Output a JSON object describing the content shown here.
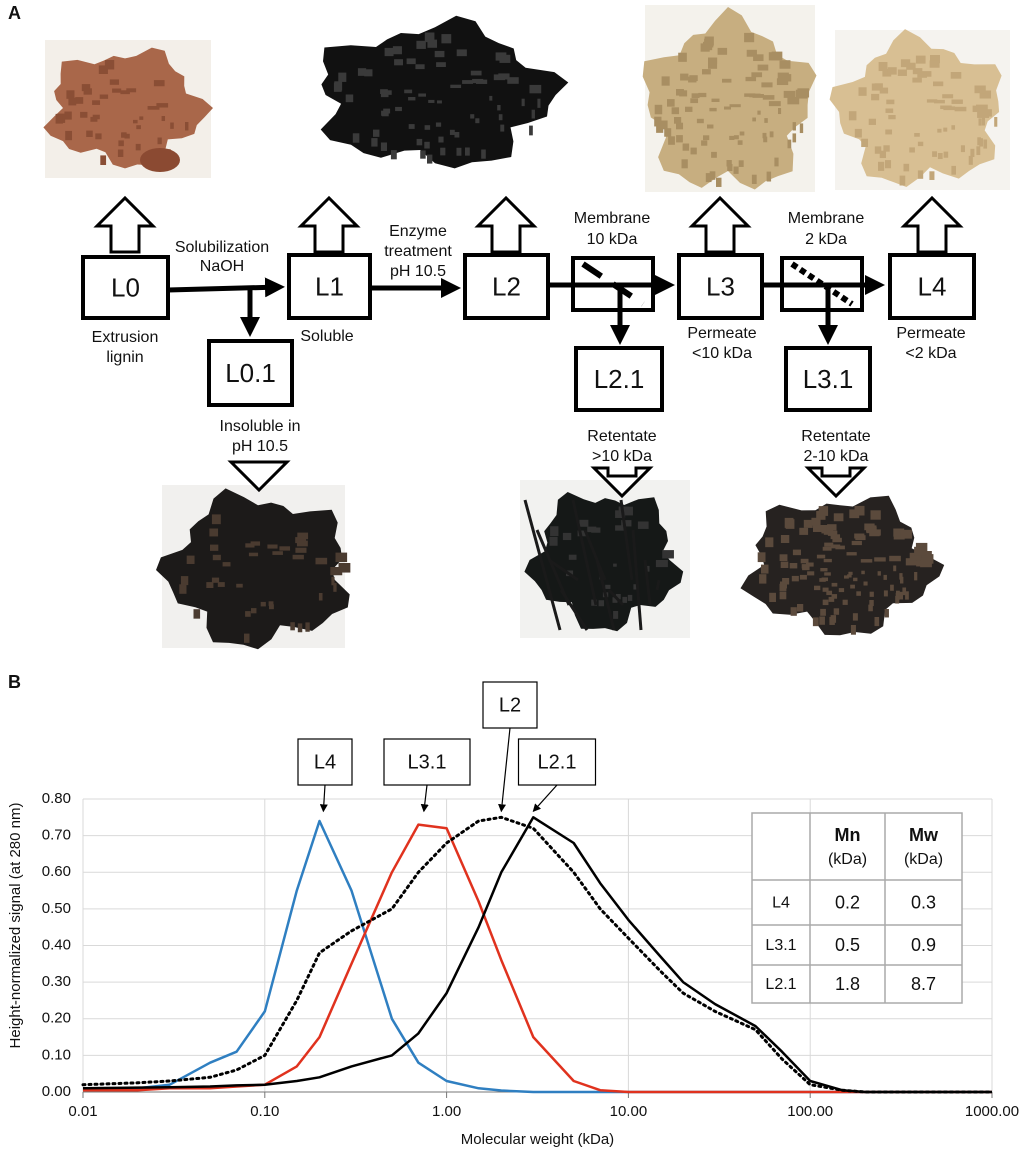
{
  "panel_a": {
    "label": "A",
    "nodes": [
      {
        "label": "L0",
        "caption": [
          "Extrusion",
          "lignin"
        ]
      },
      {
        "label": "L1",
        "caption": [
          "Soluble"
        ]
      },
      {
        "label": "L0.1",
        "caption": [
          "Insoluble in",
          "pH 10.5"
        ]
      },
      {
        "label": "L2"
      },
      {
        "label": "L2.1",
        "caption": [
          "Retentate",
          ">10 kDa"
        ]
      },
      {
        "label": "L3",
        "caption": [
          "Permeate",
          "<10 kDa"
        ]
      },
      {
        "label": "L3.1",
        "caption": [
          "Retentate",
          "2-10 kDa"
        ]
      },
      {
        "label": "L4",
        "caption": [
          "Permeate",
          "<2 kDa"
        ]
      }
    ],
    "steps": [
      [
        "Solubilization",
        "NaOH"
      ],
      [
        "Enzyme",
        "treatment",
        "pH 10.5"
      ],
      [
        "Membrane",
        "10 kDa"
      ],
      [
        "Membrane",
        "2 kDa"
      ]
    ]
  },
  "panel_b": {
    "label": "B"
  },
  "chart_data": {
    "type": "line",
    "x_label": "Molecular weight (kDa)",
    "y_label": "Height-normalized signal (at 280 nm)",
    "x_scale": "log",
    "grid": true,
    "xlim": [
      0.01,
      1000
    ],
    "xticks": [
      0.01,
      {
        "value": 0.1,
        "label": "0.10"
      },
      {
        "value": 1,
        "label": "1.00"
      },
      {
        "value": 10,
        "label": "10.00"
      },
      {
        "value": 100,
        "label": "100.00"
      },
      {
        "value": 1000,
        "label": "1000.00"
      }
    ],
    "ylim": [
      0,
      0.8
    ],
    "yticks": [
      {
        "value": 0,
        "label": "0.00"
      },
      {
        "value": 0.1,
        "label": "0.10"
      },
      {
        "value": 0.2,
        "label": "0.20"
      },
      {
        "value": 0.3,
        "label": "0.30"
      },
      {
        "value": 0.4,
        "label": "0.40"
      },
      {
        "value": 0.5,
        "label": "0.50"
      },
      {
        "value": 0.6,
        "label": "0.60"
      },
      {
        "value": 0.7,
        "label": "0.70"
      },
      {
        "value": 0.8,
        "label": "0.80"
      }
    ],
    "x": [
      0.01,
      0.02,
      0.03,
      0.05,
      0.07,
      0.1,
      0.15,
      0.2,
      0.3,
      0.5,
      0.7,
      1,
      1.5,
      2,
      3,
      5,
      7,
      10,
      15,
      20,
      30,
      50,
      70,
      100,
      150,
      200,
      500,
      1000
    ],
    "series": [
      {
        "name": "L4",
        "color": "#2f7fc1",
        "line_style": "solid",
        "values": [
          0.005,
          0.01,
          0.02,
          0.08,
          0.11,
          0.22,
          0.55,
          0.74,
          0.55,
          0.2,
          0.08,
          0.03,
          0.01,
          0.004,
          0,
          0,
          0,
          0,
          0,
          0,
          0,
          0,
          0,
          0,
          0,
          0,
          0,
          0
        ]
      },
      {
        "name": "L3.1",
        "color": "#e0321e",
        "line_style": "solid",
        "values": [
          0.005,
          0.005,
          0.01,
          0.01,
          0.015,
          0.02,
          0.07,
          0.15,
          0.35,
          0.6,
          0.73,
          0.72,
          0.52,
          0.36,
          0.15,
          0.03,
          0.005,
          0,
          0,
          0,
          0,
          0,
          0,
          0,
          0,
          0,
          0,
          0
        ]
      },
      {
        "name": "L2",
        "color": "#000000",
        "line_style": "dotted",
        "values": [
          0.02,
          0.025,
          0.03,
          0.04,
          0.06,
          0.1,
          0.25,
          0.38,
          0.44,
          0.5,
          0.6,
          0.68,
          0.74,
          0.75,
          0.72,
          0.6,
          0.5,
          0.42,
          0.33,
          0.27,
          0.22,
          0.17,
          0.09,
          0.02,
          0.005,
          0,
          0,
          0
        ]
      },
      {
        "name": "L2.1",
        "color": "#000000",
        "line_style": "solid",
        "values": [
          0.01,
          0.012,
          0.013,
          0.015,
          0.018,
          0.02,
          0.03,
          0.04,
          0.07,
          0.1,
          0.16,
          0.27,
          0.45,
          0.6,
          0.75,
          0.68,
          0.57,
          0.47,
          0.37,
          0.3,
          0.24,
          0.18,
          0.11,
          0.03,
          0.005,
          0,
          0,
          0
        ]
      }
    ],
    "annotations": [
      {
        "text": "L4",
        "x": 0.21,
        "y": 0.75
      },
      {
        "text": "L3.1",
        "x": 0.75,
        "y": 0.75
      },
      {
        "text": "L2",
        "x": 2.0,
        "y": 0.75
      },
      {
        "text": "L2.1",
        "x": 3.0,
        "y": 0.75
      }
    ],
    "inset_table": {
      "columns": [
        {
          "name": "Mn",
          "unit": "(kDa)"
        },
        {
          "name": "Mw",
          "unit": "(kDa)"
        }
      ],
      "rows": [
        {
          "label": "L4",
          "values": [
            0.2,
            0.3
          ]
        },
        {
          "label": "L3.1",
          "values": [
            0.5,
            0.9
          ]
        },
        {
          "label": "L2.1",
          "values": [
            1.8,
            8.7
          ]
        }
      ]
    }
  }
}
